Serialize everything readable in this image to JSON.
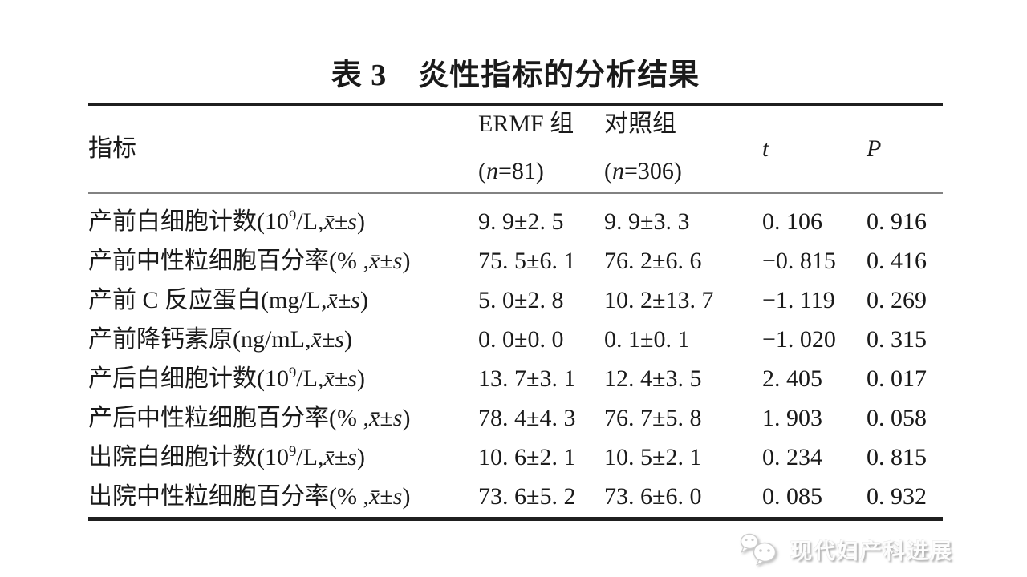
{
  "title": "表 3　炎性指标的分析结果",
  "table": {
    "header": {
      "indicator": "指标",
      "group1_name": "ERMF 组",
      "group1_n": "(n=81)",
      "group2_name": "对照组",
      "group2_n": "(n=306)",
      "t": "t",
      "p": "P"
    },
    "rows": [
      {
        "indicator": "产前白细胞计数(10⁹/L,x̄±s)",
        "ermf": "9. 9±2. 5",
        "control": "9. 9±3. 3",
        "t": "0. 106",
        "p": "0. 916"
      },
      {
        "indicator": "产前中性粒细胞百分率(% ,x̄±s)",
        "ermf": "75. 5±6. 1",
        "control": "76. 2±6. 6",
        "t": "−0. 815",
        "p": "0. 416"
      },
      {
        "indicator": "产前 C 反应蛋白(mg/L,x̄±s)",
        "ermf": "5. 0±2. 8",
        "control": "10. 2±13. 7",
        "t": "−1. 119",
        "p": "0. 269"
      },
      {
        "indicator": "产前降钙素原(ng/mL,x̄±s)",
        "ermf": "0. 0±0. 0",
        "control": "0. 1±0. 1",
        "t": "−1. 020",
        "p": "0. 315"
      },
      {
        "indicator": "产后白细胞计数(10⁹/L,x̄±s)",
        "ermf": "13. 7±3. 1",
        "control": "12. 4±3. 5",
        "t": "2. 405",
        "p": "0. 017"
      },
      {
        "indicator": "产后中性粒细胞百分率(% ,x̄±s)",
        "ermf": "78. 4±4. 3",
        "control": "76. 7±5. 8",
        "t": "1. 903",
        "p": "0. 058"
      },
      {
        "indicator": "出院白细胞计数(10⁹/L,x̄±s)",
        "ermf": "10. 6±2. 1",
        "control": "10. 5±2. 1",
        "t": "0. 234",
        "p": "0. 815"
      },
      {
        "indicator": "出院中性粒细胞百分率(% ,x̄±s)",
        "ermf": "73. 6±5. 2",
        "control": "73. 6±6. 0",
        "t": "0. 085",
        "p": "0. 932"
      }
    ]
  },
  "watermark": {
    "icon": "wechat-icon",
    "text": "现代妇产科进展"
  },
  "colors": {
    "background": "#ffffff",
    "text": "#1a1a1a",
    "rule_heavy": "#1f1f1f",
    "rule_light": "#828282",
    "watermark": "#fdfdfd"
  }
}
